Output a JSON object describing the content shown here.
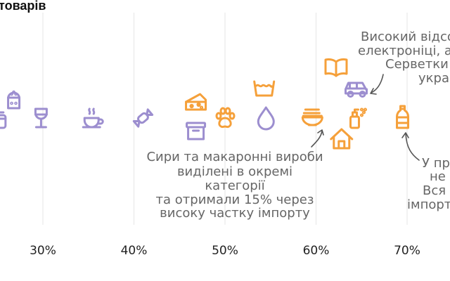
{
  "chart_data": {
    "type": "scatter",
    "title": "товарів",
    "xlabel": "",
    "ylabel": "",
    "xlim": [
      25,
      74
    ],
    "grid": true,
    "x_ticks": [
      30,
      40,
      50,
      60,
      70
    ],
    "x_tick_labels": [
      "30%",
      "40%",
      "50%",
      "60%",
      "70%"
    ],
    "colors": {
      "low": "#9c8ecf",
      "high": "#f5a03a"
    },
    "points": [
      {
        "icon": "food-jar-icon",
        "x": 25.2,
        "group": "low"
      },
      {
        "icon": "salt-shaker-icon",
        "x": 26.8,
        "group": "low"
      },
      {
        "icon": "wine-glass-icon",
        "x": 29.8,
        "group": "low"
      },
      {
        "icon": "coffee-cup-icon",
        "x": 35.5,
        "group": "low"
      },
      {
        "icon": "candy-icon",
        "x": 41.0,
        "group": "low"
      },
      {
        "icon": "cheese-icon",
        "x": 46.8,
        "group": "high"
      },
      {
        "icon": "storage-box-icon",
        "x": 46.8,
        "group": "low"
      },
      {
        "icon": "paw-icon",
        "x": 50.0,
        "group": "high"
      },
      {
        "icon": "water-drop-icon",
        "x": 54.5,
        "group": "low"
      },
      {
        "icon": "laundry-basin-icon",
        "x": 54.3,
        "group": "high"
      },
      {
        "icon": "noodle-bowl-icon",
        "x": 59.6,
        "group": "high"
      },
      {
        "icon": "open-book-icon",
        "x": 62.2,
        "group": "high"
      },
      {
        "icon": "house-icon",
        "x": 62.8,
        "group": "high"
      },
      {
        "icon": "car-icon",
        "x": 64.4,
        "group": "low"
      },
      {
        "icon": "spray-bottle-icon",
        "x": 64.4,
        "group": "high"
      },
      {
        "icon": "oil-bottle-icon",
        "x": 69.5,
        "group": "high"
      }
    ],
    "annotations": [
      {
        "lines": [
          "Сири та макаронні вироби",
          "виділені в окремі",
          "категорії",
          "та отримали 15% через",
          "високу частку імпорту"
        ]
      },
      {
        "lines": [
          "Високий відсо",
          "електроніці, а",
          "Серветки",
          "укра"
        ]
      },
      {
        "lines": [
          "У пр",
          "не",
          "Вся",
          "імпорт"
        ]
      }
    ]
  }
}
